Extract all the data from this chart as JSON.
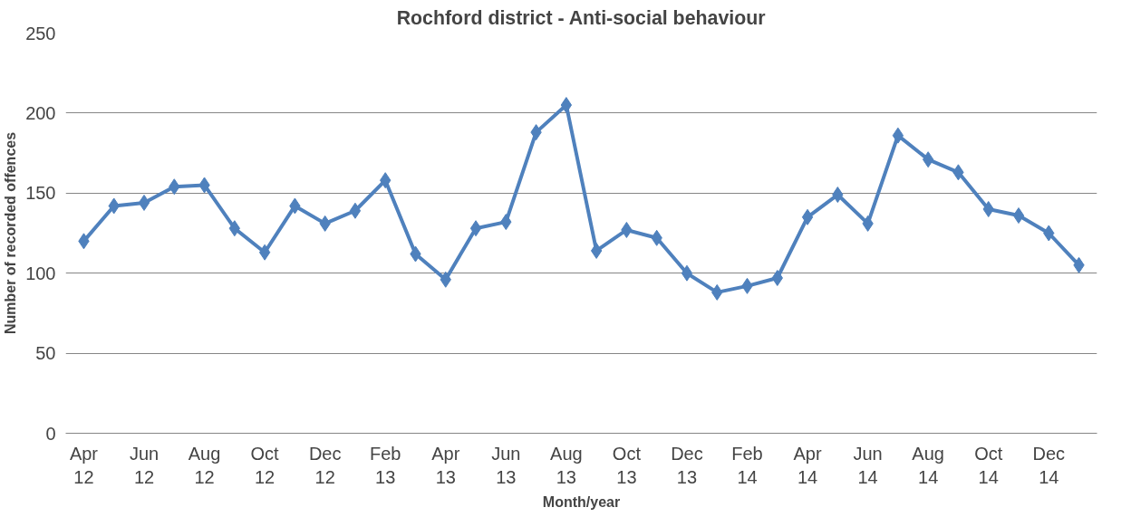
{
  "chart_data": {
    "type": "line",
    "title": "Rochford district - Anti-social behaviour",
    "xlabel": "Month/year",
    "ylabel": "Number of recorded offences",
    "categories": [
      "Apr 12",
      null,
      "Jun 12",
      null,
      "Aug 12",
      null,
      "Oct 12",
      null,
      "Dec 12",
      null,
      "Feb 13",
      null,
      "Apr 13",
      null,
      "Jun 13",
      null,
      "Aug 13",
      null,
      "Oct 13",
      null,
      "Dec 13",
      null,
      "Feb 14",
      null,
      "Apr 14",
      null,
      "Jun 14",
      null,
      "Aug 14",
      null,
      "Oct 14",
      null,
      "Dec 14",
      null
    ],
    "series": [
      {
        "color": "#4f81bd",
        "values": [
          120,
          142,
          144,
          154,
          155,
          128,
          113,
          142,
          131,
          139,
          158,
          112,
          96,
          128,
          132,
          188,
          205,
          114,
          127,
          122,
          100,
          88,
          92,
          97,
          135,
          149,
          131,
          186,
          171,
          163,
          140,
          136,
          125,
          105
        ]
      }
    ],
    "ylim": [
      0,
      250
    ],
    "yticks": [
      0,
      50,
      100,
      150,
      200,
      250
    ],
    "grid": "y",
    "marker": "diamond",
    "line_style": "solid"
  }
}
